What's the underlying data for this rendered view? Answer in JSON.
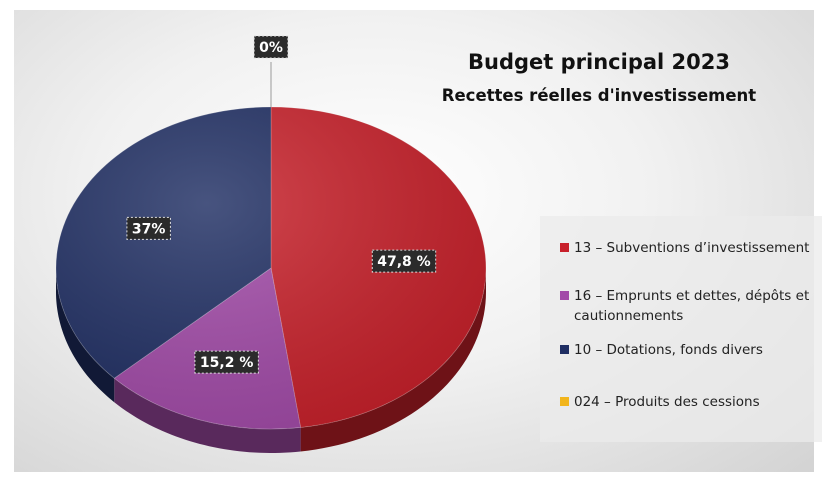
{
  "chart_data": {
    "type": "pie",
    "title": "Budget principal 2023",
    "subtitle": "Recettes réelles d'investissement",
    "slices": [
      {
        "name": "13 – Subventions d’investissement",
        "value": 47.8,
        "label": "47,8 %",
        "color": "#c8202a"
      },
      {
        "name": "16 – Emprunts et dettes, dépôts et cautionnements",
        "value": 15.2,
        "label": "15,2 %",
        "color": "#a24aa8"
      },
      {
        "name": "10 – Dotations, fonds divers",
        "value": 37,
        "label": "37%",
        "color": "#1f2e63"
      },
      {
        "name": "024 – Produits des cessions",
        "value": 0,
        "label": "0%",
        "color": "#f2b51c"
      }
    ],
    "legend_position": "right"
  }
}
